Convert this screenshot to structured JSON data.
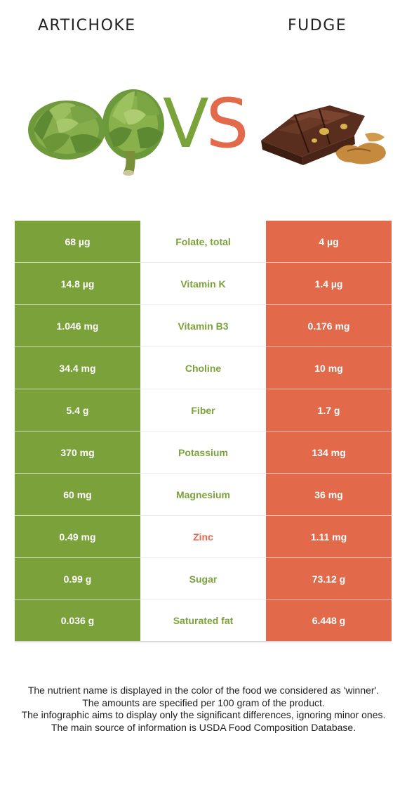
{
  "header": {
    "left_food": "ARTICHOKE",
    "right_food": "FUDGE",
    "vs_v": "V",
    "vs_s": "S"
  },
  "colors": {
    "winner_left": "#7ba23a",
    "winner_right": "#e2694a"
  },
  "images": {
    "left": "artichoke-image",
    "right": "fudge-image"
  },
  "rows": [
    {
      "left": "68 µg",
      "nutrient": "Folate, total",
      "right": "4 µg",
      "winner": "left"
    },
    {
      "left": "14.8 µg",
      "nutrient": "Vitamin K",
      "right": "1.4 µg",
      "winner": "left"
    },
    {
      "left": "1.046 mg",
      "nutrient": "Vitamin B3",
      "right": "0.176 mg",
      "winner": "left"
    },
    {
      "left": "34.4 mg",
      "nutrient": "Choline",
      "right": "10 mg",
      "winner": "left"
    },
    {
      "left": "5.4 g",
      "nutrient": "Fiber",
      "right": "1.7 g",
      "winner": "left"
    },
    {
      "left": "370 mg",
      "nutrient": "Potassium",
      "right": "134 mg",
      "winner": "left"
    },
    {
      "left": "60 mg",
      "nutrient": "Magnesium",
      "right": "36 mg",
      "winner": "left"
    },
    {
      "left": "0.49 mg",
      "nutrient": "Zinc",
      "right": "1.11 mg",
      "winner": "right"
    },
    {
      "left": "0.99 g",
      "nutrient": "Sugar",
      "right": "73.12 g",
      "winner": "left"
    },
    {
      "left": "0.036 g",
      "nutrient": "Saturated fat",
      "right": "6.448 g",
      "winner": "left"
    }
  ],
  "notes": [
    "The nutrient name is displayed in the color of the food we considered as 'winner'.",
    "The amounts are specified per 100 gram of the product.",
    "The infographic aims to display only the significant differences, ignoring minor ones.",
    "The main source of information is USDA Food Composition Database."
  ]
}
